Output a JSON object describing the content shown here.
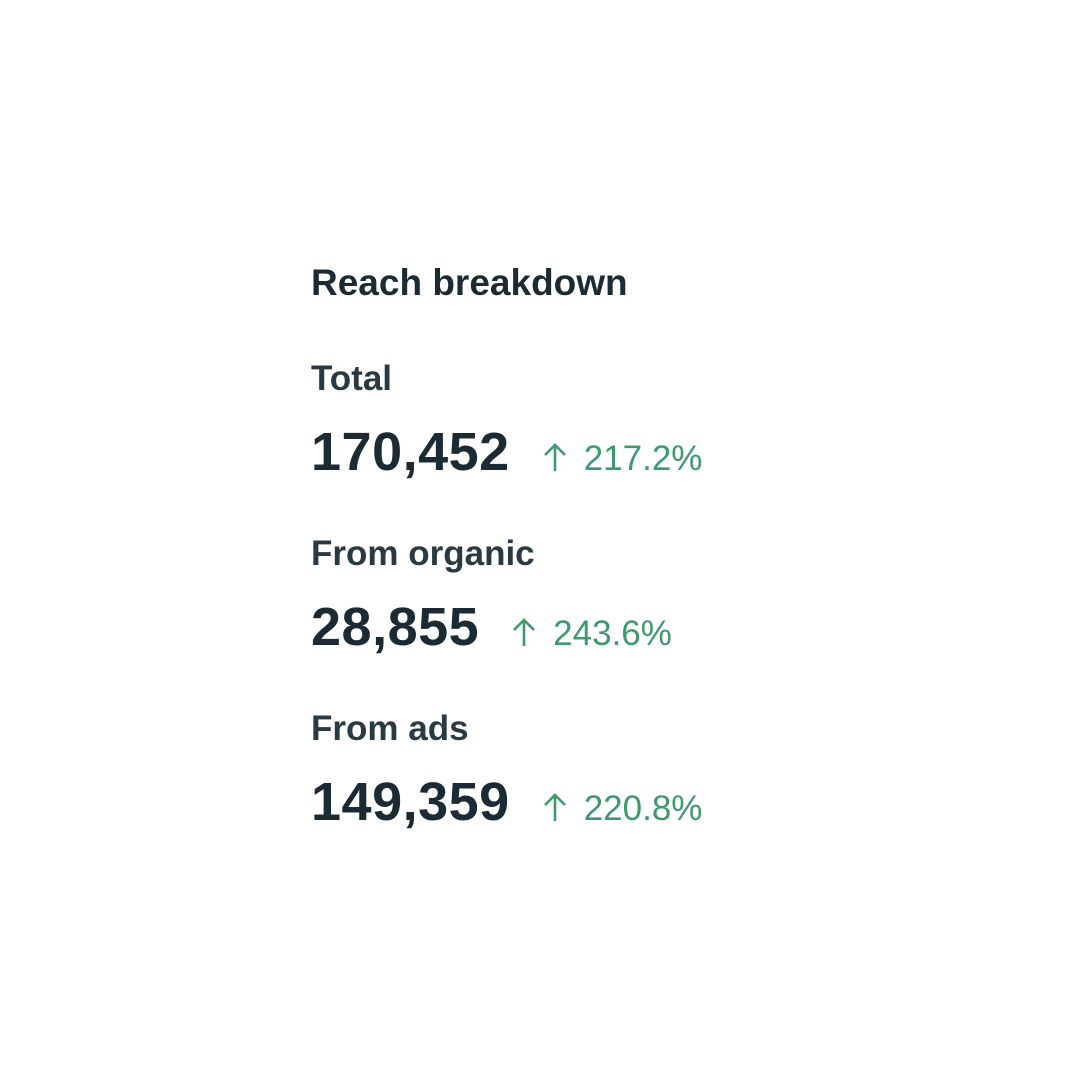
{
  "card": {
    "title": "Reach breakdown",
    "colors": {
      "text": "#1c2b33",
      "positive": "#3e9a6c"
    },
    "metrics": [
      {
        "label": "Total",
        "value": "170,452",
        "change": "217.2%",
        "trend_icon": "arrow-up-icon"
      },
      {
        "label": "From organic",
        "value": "28,855",
        "change": "243.6%",
        "trend_icon": "arrow-up-icon"
      },
      {
        "label": "From ads",
        "value": "149,359",
        "change": "220.8%",
        "trend_icon": "arrow-up-icon"
      }
    ]
  }
}
